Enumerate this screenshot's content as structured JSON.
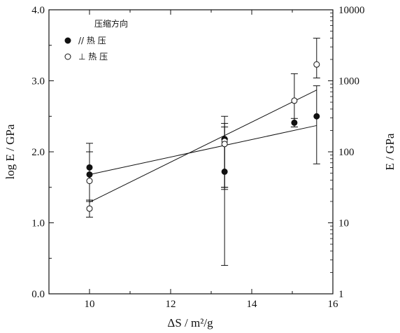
{
  "chart_data": {
    "type": "scatter",
    "xlabel": "ΔS / m²/g",
    "ylabel_left": "log E / GPa",
    "ylabel_right": "E / GPa",
    "xlim": [
      9,
      16
    ],
    "ylim": [
      0,
      4
    ],
    "x_ticks": [
      "10",
      "12",
      "14",
      "16"
    ],
    "y_ticks_left": [
      "0.0",
      "1.0",
      "2.0",
      "3.0",
      "4.0"
    ],
    "y_ticks_right": [
      "1",
      "10",
      "100",
      "1000",
      "10000"
    ],
    "legend": {
      "title": "压缩方向",
      "placement": "top-left"
    },
    "series": [
      {
        "name": "// 热 压",
        "marker": "filled-circle",
        "points": [
          {
            "x": 10.0,
            "y": 1.78,
            "err_low": 1.32,
            "err_high": 2.0
          },
          {
            "x": 10.0,
            "y": 1.68,
            "err_low": 1.32,
            "err_high": 2.0
          },
          {
            "x": 13.33,
            "y": 2.18,
            "err_low": 1.5,
            "err_high": 2.4
          },
          {
            "x": 13.33,
            "y": 1.72,
            "err_low": 0.4,
            "err_high": 2.18
          },
          {
            "x": 15.05,
            "y": 2.41,
            "err_low": 2.35,
            "err_high": 2.47
          },
          {
            "x": 15.6,
            "y": 2.5,
            "err_low": 1.83,
            "err_high": 2.93
          }
        ],
        "fit": {
          "x": [
            10.0,
            15.6
          ],
          "y": [
            1.68,
            2.37
          ]
        }
      },
      {
        "name": "⊥ 热 压",
        "marker": "open-circle",
        "points": [
          {
            "x": 10.0,
            "y": 1.59,
            "err_low": 1.3,
            "err_high": 2.12
          },
          {
            "x": 10.0,
            "y": 1.2,
            "err_low": 1.08,
            "err_high": 1.32
          },
          {
            "x": 13.33,
            "y": 2.15,
            "err_low": 1.47,
            "err_high": 2.5
          },
          {
            "x": 13.33,
            "y": 2.11,
            "err_low": 1.5,
            "err_high": 2.35
          },
          {
            "x": 15.05,
            "y": 2.72,
            "err_low": 2.35,
            "err_high": 3.1
          },
          {
            "x": 15.6,
            "y": 3.23,
            "err_low": 3.04,
            "err_high": 3.6
          }
        ],
        "fit": {
          "x": [
            10.0,
            15.6
          ],
          "y": [
            1.29,
            2.87
          ]
        }
      }
    ]
  }
}
